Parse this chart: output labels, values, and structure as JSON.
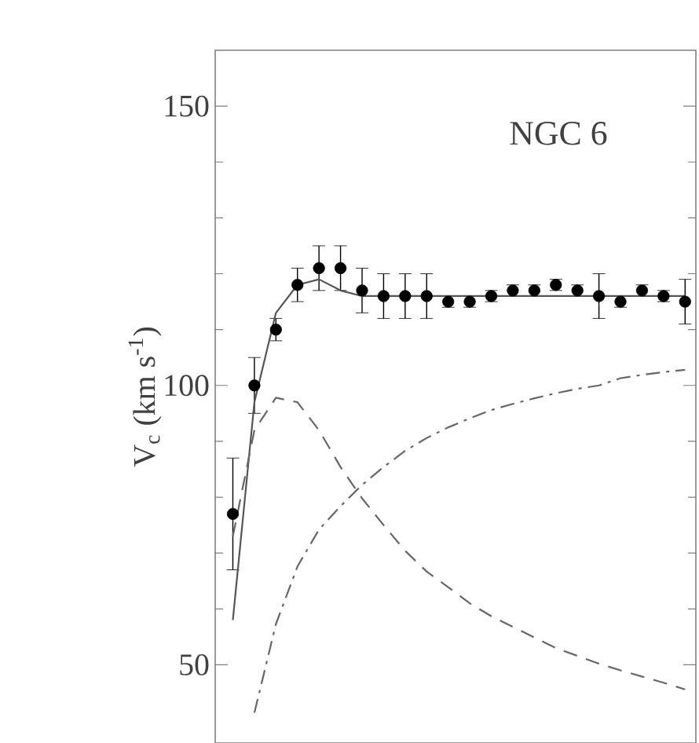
{
  "chart_data": {
    "type": "line",
    "ylabel": "V$_{c}$ (km s$^{-1}$)",
    "annotations": [
      "NGC 6"
    ],
    "categories": [
      null,
      null,
      null,
      null,
      null,
      null,
      null,
      null,
      null,
      null,
      null,
      null,
      null,
      null,
      null,
      null,
      null,
      null,
      null,
      null,
      null,
      null
    ],
    "ylim": [
      36,
      160
    ],
    "yticks": [
      50,
      100,
      150
    ],
    "tick_labels": "y",
    "series": [
      {
        "type": "scatter",
        "color": "#000000",
        "marker": "circle",
        "values": [
          77,
          100,
          110,
          118,
          121,
          121,
          117,
          116,
          116,
          116,
          115,
          115,
          116,
          117,
          117,
          118,
          117,
          116,
          115,
          117,
          116,
          115
        ],
        "errors": [
          10,
          5,
          2,
          3,
          4,
          4,
          4,
          4,
          4,
          4,
          1,
          1,
          1,
          1,
          1,
          1,
          1,
          4,
          1,
          1,
          1,
          4
        ]
      },
      {
        "color": "#555555",
        "line_style": "solid",
        "marker": "none",
        "values": [
          58,
          97,
          113,
          118,
          119,
          117,
          116,
          116,
          116,
          116,
          116,
          116,
          116,
          116,
          116,
          116,
          116,
          116,
          116,
          116,
          116,
          116
        ]
      },
      {
        "color": "#666666",
        "line_style": "dashed",
        "marker": "none",
        "values": [
          73,
          92,
          97.8,
          97,
          92,
          85.4,
          79.8,
          75,
          70.4,
          66.7,
          63.9,
          61,
          58.7,
          56.8,
          54.9,
          53,
          51.6,
          50.2,
          49,
          47.9,
          46.8,
          45.6
        ]
      },
      {
        "color": "#666666",
        "line_style": "dashdot",
        "marker": "none",
        "values": [
          null,
          41.4,
          57.3,
          67.6,
          74.2,
          78.4,
          82.2,
          85.4,
          88.3,
          90.6,
          92.5,
          94.1,
          95.6,
          96.7,
          97.7,
          98.6,
          99.4,
          100,
          101.3,
          101.9,
          102.4,
          102.8
        ]
      }
    ]
  }
}
